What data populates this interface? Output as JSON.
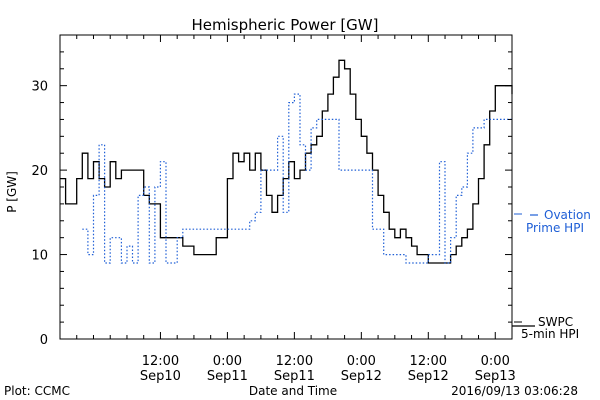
{
  "chart_data": {
    "type": "line",
    "title": "Hemispheric Power [GW]",
    "xlabel": "Date and Time",
    "ylabel": "P [GW]",
    "ylim": [
      0,
      36
    ],
    "xlim": [
      "2016-09-09 18:00",
      "2016-09-13 03:00"
    ],
    "y_ticks": [
      0,
      10,
      20,
      30
    ],
    "x_ticks": [
      {
        "time": "2016-09-10 12:00",
        "top": "12:00",
        "bottom": "Sep10"
      },
      {
        "time": "2016-09-11 00:00",
        "top": "0:00",
        "bottom": "Sep11"
      },
      {
        "time": "2016-09-11 12:00",
        "top": "12:00",
        "bottom": "Sep11"
      },
      {
        "time": "2016-09-12 00:00",
        "top": "0:00",
        "bottom": "Sep12"
      },
      {
        "time": "2016-09-12 12:00",
        "top": "12:00",
        "bottom": "Sep12"
      },
      {
        "time": "2016-09-13 00:00",
        "top": "0:00",
        "bottom": "Sep13"
      }
    ],
    "grid": false,
    "series": [
      {
        "name": "SWPC 5-min HPI",
        "legend_lines": [
          "SWPC",
          "5-min HPI"
        ],
        "color": "#000000",
        "style": "solid",
        "points": [
          [
            "2016-09-09 18:00",
            19
          ],
          [
            "2016-09-09 19:00",
            16
          ],
          [
            "2016-09-09 20:00",
            16
          ],
          [
            "2016-09-09 21:00",
            19
          ],
          [
            "2016-09-09 22:00",
            22
          ],
          [
            "2016-09-09 23:00",
            19
          ],
          [
            "2016-09-10 00:00",
            21
          ],
          [
            "2016-09-10 01:00",
            19
          ],
          [
            "2016-09-10 02:00",
            18
          ],
          [
            "2016-09-10 03:00",
            21
          ],
          [
            "2016-09-10 04:00",
            19
          ],
          [
            "2016-09-10 05:00",
            20
          ],
          [
            "2016-09-10 07:00",
            20
          ],
          [
            "2016-09-10 09:00",
            17
          ],
          [
            "2016-09-10 10:00",
            16
          ],
          [
            "2016-09-10 12:00",
            12
          ],
          [
            "2016-09-10 14:00",
            12
          ],
          [
            "2016-09-10 16:00",
            11
          ],
          [
            "2016-09-10 18:00",
            10
          ],
          [
            "2016-09-10 20:00",
            10
          ],
          [
            "2016-09-10 22:00",
            12
          ],
          [
            "2016-09-11 00:00",
            19
          ],
          [
            "2016-09-11 01:00",
            22
          ],
          [
            "2016-09-11 02:00",
            21
          ],
          [
            "2016-09-11 03:00",
            22
          ],
          [
            "2016-09-11 04:00",
            20
          ],
          [
            "2016-09-11 05:00",
            22
          ],
          [
            "2016-09-11 06:00",
            20
          ],
          [
            "2016-09-11 07:00",
            17
          ],
          [
            "2016-09-11 08:00",
            15
          ],
          [
            "2016-09-11 09:00",
            17
          ],
          [
            "2016-09-11 10:00",
            19
          ],
          [
            "2016-09-11 11:00",
            21
          ],
          [
            "2016-09-11 12:00",
            19
          ],
          [
            "2016-09-11 13:00",
            20
          ],
          [
            "2016-09-11 14:00",
            22
          ],
          [
            "2016-09-11 15:00",
            23
          ],
          [
            "2016-09-11 16:00",
            24
          ],
          [
            "2016-09-11 17:00",
            27
          ],
          [
            "2016-09-11 18:00",
            29
          ],
          [
            "2016-09-11 19:00",
            31
          ],
          [
            "2016-09-11 20:00",
            33
          ],
          [
            "2016-09-11 21:00",
            32
          ],
          [
            "2016-09-11 22:00",
            29
          ],
          [
            "2016-09-11 23:00",
            26
          ],
          [
            "2016-09-12 00:00",
            24
          ],
          [
            "2016-09-12 01:00",
            22
          ],
          [
            "2016-09-12 02:00",
            20
          ],
          [
            "2016-09-12 03:00",
            17
          ],
          [
            "2016-09-12 04:00",
            15
          ],
          [
            "2016-09-12 05:00",
            13
          ],
          [
            "2016-09-12 06:00",
            12
          ],
          [
            "2016-09-12 07:00",
            13
          ],
          [
            "2016-09-12 08:00",
            12
          ],
          [
            "2016-09-12 09:00",
            11
          ],
          [
            "2016-09-12 10:00",
            10
          ],
          [
            "2016-09-12 11:00",
            10
          ],
          [
            "2016-09-12 12:00",
            9
          ],
          [
            "2016-09-12 14:00",
            9
          ],
          [
            "2016-09-12 16:00",
            10
          ],
          [
            "2016-09-12 17:00",
            11
          ],
          [
            "2016-09-12 18:00",
            12
          ],
          [
            "2016-09-12 19:00",
            13
          ],
          [
            "2016-09-12 20:00",
            16
          ],
          [
            "2016-09-12 21:00",
            19
          ],
          [
            "2016-09-12 22:00",
            23
          ],
          [
            "2016-09-12 23:00",
            27
          ],
          [
            "2016-09-13 00:00",
            30
          ],
          [
            "2016-09-13 01:00",
            30
          ],
          [
            "2016-09-13 02:00",
            30
          ],
          [
            "2016-09-13 03:00",
            29
          ]
        ]
      },
      {
        "name": "Ovation Prime HPI",
        "legend_lines": [
          "Ovation",
          "Prime HPI"
        ],
        "color": "#1f5fd6",
        "style": "dotted",
        "points": [
          [
            "2016-09-09 22:00",
            13
          ],
          [
            "2016-09-09 23:00",
            10
          ],
          [
            "2016-09-10 00:00",
            17
          ],
          [
            "2016-09-10 01:00",
            23
          ],
          [
            "2016-09-10 02:00",
            9
          ],
          [
            "2016-09-10 03:00",
            12
          ],
          [
            "2016-09-10 05:00",
            9
          ],
          [
            "2016-09-10 06:00",
            11
          ],
          [
            "2016-09-10 07:00",
            9
          ],
          [
            "2016-09-10 08:00",
            17
          ],
          [
            "2016-09-10 09:00",
            18
          ],
          [
            "2016-09-10 10:00",
            9
          ],
          [
            "2016-09-10 11:00",
            18
          ],
          [
            "2016-09-10 12:00",
            21
          ],
          [
            "2016-09-10 13:00",
            9
          ],
          [
            "2016-09-10 15:00",
            12
          ],
          [
            "2016-09-10 16:00",
            13
          ],
          [
            "2016-09-11 00:00",
            13
          ],
          [
            "2016-09-11 02:00",
            13
          ],
          [
            "2016-09-11 04:00",
            14
          ],
          [
            "2016-09-11 05:00",
            15
          ],
          [
            "2016-09-11 06:00",
            20
          ],
          [
            "2016-09-11 08:00",
            20
          ],
          [
            "2016-09-11 09:00",
            24
          ],
          [
            "2016-09-11 10:00",
            15
          ],
          [
            "2016-09-11 11:00",
            28
          ],
          [
            "2016-09-11 12:00",
            29
          ],
          [
            "2016-09-11 13:00",
            23
          ],
          [
            "2016-09-11 14:00",
            20
          ],
          [
            "2016-09-11 15:00",
            25
          ],
          [
            "2016-09-11 16:00",
            26
          ],
          [
            "2016-09-11 18:00",
            26
          ],
          [
            "2016-09-11 20:00",
            20
          ],
          [
            "2016-09-11 22:00",
            20
          ],
          [
            "2016-09-12 00:00",
            20
          ],
          [
            "2016-09-12 02:00",
            13
          ],
          [
            "2016-09-12 04:00",
            10
          ],
          [
            "2016-09-12 06:00",
            10
          ],
          [
            "2016-09-12 08:00",
            9
          ],
          [
            "2016-09-12 10:00",
            9
          ],
          [
            "2016-09-12 12:00",
            10
          ],
          [
            "2016-09-12 14:00",
            21
          ],
          [
            "2016-09-12 15:00",
            9
          ],
          [
            "2016-09-12 16:00",
            12
          ],
          [
            "2016-09-12 17:00",
            17
          ],
          [
            "2016-09-12 18:00",
            18
          ],
          [
            "2016-09-12 19:00",
            22
          ],
          [
            "2016-09-12 20:00",
            25
          ],
          [
            "2016-09-12 22:00",
            26
          ],
          [
            "2016-09-13 00:00",
            26
          ],
          [
            "2016-09-13 03:00",
            26
          ]
        ]
      }
    ]
  },
  "footer": {
    "plot_credit": "Plot: CCMC",
    "timestamp": "2016/09/13 03:06:28"
  }
}
